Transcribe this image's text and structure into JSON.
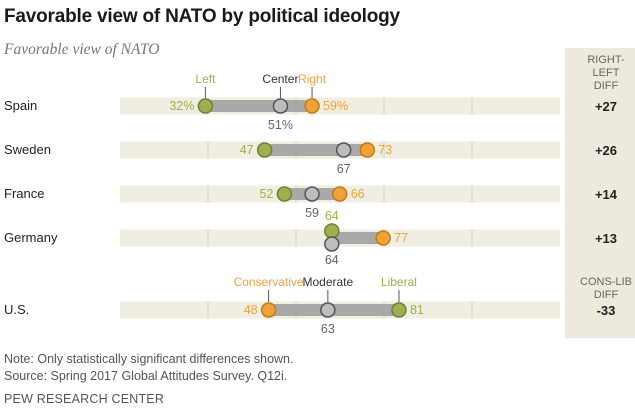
{
  "title": "Favorable view of NATO by political ideology",
  "subtitle": "Favorable view of NATO",
  "colors": {
    "left": "#a0ae4f",
    "right": "#f0a23a",
    "center": "#bdbdbd",
    "track": "#efeee1",
    "connector": "#a8a8a8",
    "diff_panel": "#ede9dd"
  },
  "chart_data": {
    "type": "dot-range",
    "xlim": [
      0,
      100
    ],
    "groups": [
      {
        "name": "Spain",
        "left": 32,
        "center": 51,
        "right": 59,
        "diff": "+27",
        "labels": {
          "left": "32%",
          "center": "51%",
          "right": "59%"
        }
      },
      {
        "name": "Sweden",
        "left": 47,
        "center": 67,
        "right": 73,
        "diff": "+26",
        "labels": {
          "left": "47",
          "center": "67",
          "right": "73"
        }
      },
      {
        "name": "France",
        "left": 52,
        "center": 59,
        "right": 66,
        "diff": "+14",
        "labels": {
          "left": "52",
          "center": "59",
          "right": "66"
        }
      },
      {
        "name": "Germany",
        "left": 64,
        "center": 64,
        "right": 77,
        "diff": "+13",
        "labels": {
          "left": "64",
          "center": "64",
          "right": "77"
        }
      },
      {
        "name": "U.S.",
        "conservative": 48,
        "moderate": 63,
        "liberal": 81,
        "diff": "-33",
        "labels": {
          "conservative": "48",
          "moderate": "63",
          "liberal": "81"
        }
      }
    ],
    "legend_top": {
      "left": "Left",
      "center": "Center",
      "right": "Right"
    },
    "legend_us": {
      "conservative": "Conservative",
      "moderate": "Moderate",
      "liberal": "Liberal"
    },
    "diff_headers": {
      "top": [
        "RIGHT-",
        "LEFT",
        "DIFF"
      ],
      "us": [
        "CONS-LIB",
        "DIFF"
      ]
    }
  },
  "footer": {
    "note": "Note: Only statistically significant differences shown.",
    "source": "Source: Spring 2017 Global Attitudes Survey. Q12i.",
    "org": "PEW RESEARCH CENTER"
  }
}
